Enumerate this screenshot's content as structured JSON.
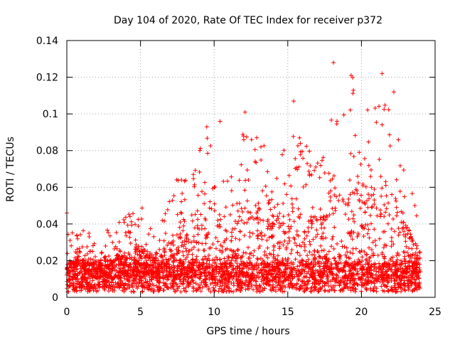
{
  "chart_data": {
    "type": "scatter",
    "title": "Day 104 of 2020, Rate Of TEC Index for receiver p372",
    "xlabel": "GPS time / hours",
    "ylabel": "ROTI / TECUs",
    "xlim": [
      0,
      25
    ],
    "ylim": [
      0,
      0.14
    ],
    "x_ticks": [
      0,
      5,
      10,
      15,
      20,
      25
    ],
    "x_tick_labels": [
      "0",
      "5",
      "10",
      "15",
      "20",
      "25"
    ],
    "y_ticks": [
      0,
      0.02,
      0.04,
      0.06,
      0.08,
      0.1,
      0.12,
      0.14
    ],
    "y_tick_labels": [
      "0",
      "0.02",
      "0.04",
      "0.06",
      "0.08",
      "0.1",
      "0.12",
      "0.14"
    ],
    "grid": true,
    "marker": "+",
    "marker_color": "#ff0000",
    "series": [
      {
        "name": "ROTI",
        "x_range": [
          0,
          24
        ],
        "baseline_level": 0.01,
        "envelope": [
          {
            "x": 0.0,
            "y": 0.035
          },
          {
            "x": 1.0,
            "y": 0.038
          },
          {
            "x": 2.0,
            "y": 0.032
          },
          {
            "x": 3.0,
            "y": 0.04
          },
          {
            "x": 4.0,
            "y": 0.045
          },
          {
            "x": 4.8,
            "y": 0.054
          },
          {
            "x": 6.0,
            "y": 0.038
          },
          {
            "x": 7.5,
            "y": 0.065
          },
          {
            "x": 8.5,
            "y": 0.064
          },
          {
            "x": 9.2,
            "y": 0.093
          },
          {
            "x": 10.0,
            "y": 0.096
          },
          {
            "x": 11.0,
            "y": 0.064
          },
          {
            "x": 12.0,
            "y": 0.101
          },
          {
            "x": 13.0,
            "y": 0.09
          },
          {
            "x": 14.0,
            "y": 0.08
          },
          {
            "x": 15.0,
            "y": 0.082
          },
          {
            "x": 15.3,
            "y": 0.107
          },
          {
            "x": 16.5,
            "y": 0.08
          },
          {
            "x": 17.5,
            "y": 0.08
          },
          {
            "x": 18.0,
            "y": 0.128
          },
          {
            "x": 19.0,
            "y": 0.107
          },
          {
            "x": 19.4,
            "y": 0.121
          },
          {
            "x": 20.0,
            "y": 0.094
          },
          {
            "x": 21.3,
            "y": 0.122
          },
          {
            "x": 22.0,
            "y": 0.112
          },
          {
            "x": 23.0,
            "y": 0.074
          },
          {
            "x": 24.0,
            "y": 0.045
          }
        ],
        "notable_points": [
          {
            "x": 0.0,
            "y": 0.046
          },
          {
            "x": 9.5,
            "y": 0.093
          },
          {
            "x": 10.4,
            "y": 0.096
          },
          {
            "x": 12.1,
            "y": 0.101
          },
          {
            "x": 15.4,
            "y": 0.107
          },
          {
            "x": 18.1,
            "y": 0.128
          },
          {
            "x": 19.3,
            "y": 0.121
          },
          {
            "x": 21.4,
            "y": 0.122
          },
          {
            "x": 22.2,
            "y": 0.112
          }
        ]
      }
    ]
  }
}
